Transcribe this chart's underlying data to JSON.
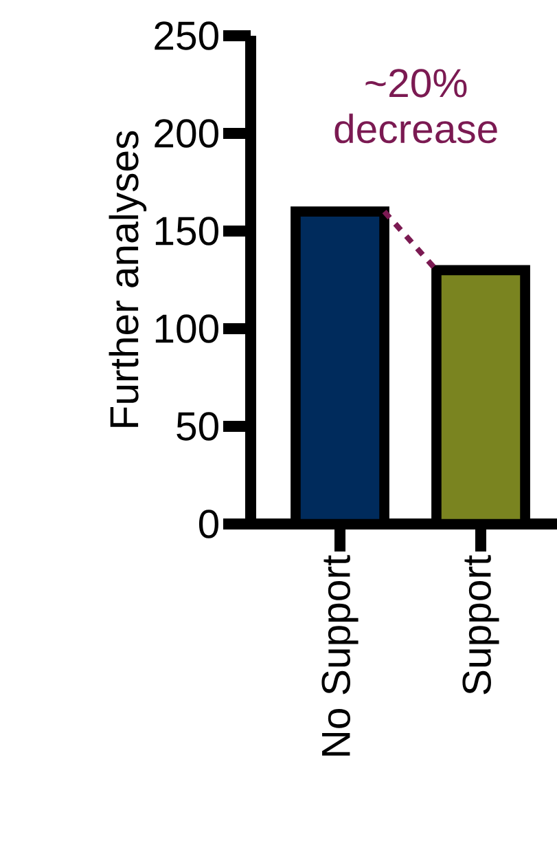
{
  "chart_data": {
    "type": "bar",
    "ylabel": "Further analyses",
    "categories": [
      "No Support",
      "Support"
    ],
    "values": [
      160,
      130
    ],
    "colors": [
      "#002b5c",
      "#7a8420"
    ],
    "ylim": [
      0,
      250
    ],
    "yticks": [
      0,
      50,
      100,
      150,
      200,
      250
    ],
    "annotations": [
      "~20% decrease"
    ]
  }
}
